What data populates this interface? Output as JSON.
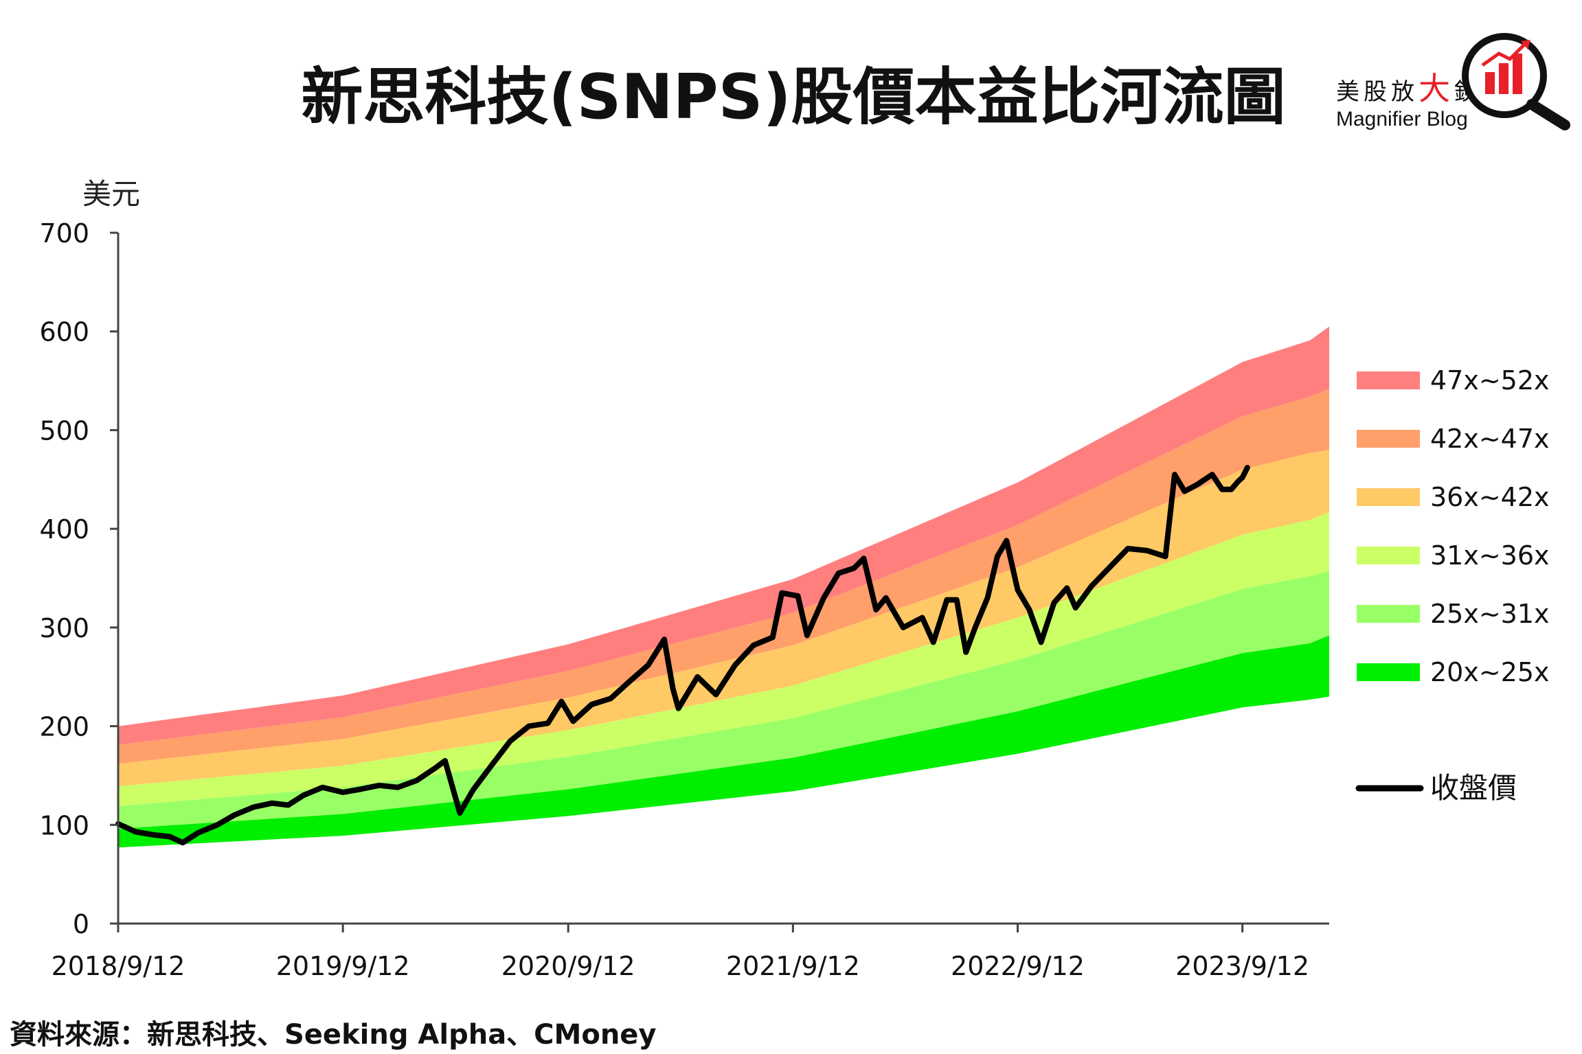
{
  "title": "新思科技(SNPS)股價本益比河流圖",
  "source": "資料來源：新思科技、Seeking Alpha、CMoney",
  "brand": {
    "cn_prefix": "美股放",
    "cn_accent": "大",
    "cn_suffix": "鏡",
    "en": "Magnifier Blog",
    "icon": "magnifier-bar-chart-icon",
    "accent_color": "#e8202a"
  },
  "chart_data": {
    "type": "area",
    "ylabel": "美元",
    "ylim": [
      0,
      700
    ],
    "yticks": [
      "0",
      "100",
      "200",
      "300",
      "400",
      "500",
      "600",
      "700"
    ],
    "xlim": [
      "2018/9/12",
      "2024/1/31"
    ],
    "xticks": [
      "2018/9/12",
      "2019/9/12",
      "2020/9/12",
      "2021/9/12",
      "2022/9/12",
      "2023/9/12"
    ],
    "legend_position": "right",
    "grid": false,
    "eps_dates": [
      "2018/9/12",
      "2019/9/12",
      "2020/9/12",
      "2021/9/12",
      "2022/9/12",
      "2023/9/12",
      "2023/12/31",
      "2024/1/31"
    ],
    "band_boundaries": [
      {
        "multiple": "20x",
        "values": [
          77,
          89,
          109,
          134,
          172,
          219,
          227,
          230
        ]
      },
      {
        "multiple": "25x",
        "values": [
          96,
          111,
          136,
          168,
          215,
          274,
          284,
          292
        ]
      },
      {
        "multiple": "31x",
        "values": [
          119,
          138,
          169,
          208,
          267,
          339,
          352,
          357
        ]
      },
      {
        "multiple": "36x",
        "values": [
          139,
          160,
          196,
          241,
          310,
          394,
          409,
          417
        ]
      },
      {
        "multiple": "42x",
        "values": [
          162,
          187,
          229,
          282,
          361,
          460,
          477,
          480
        ]
      },
      {
        "multiple": "47x",
        "values": [
          181,
          209,
          256,
          315,
          404,
          514,
          534,
          542
        ]
      },
      {
        "multiple": "52x",
        "values": [
          200,
          231,
          283,
          349,
          447,
          569,
          591,
          605
        ]
      }
    ],
    "bands": [
      {
        "name": "47x~52x",
        "color": "#ff7f7f"
      },
      {
        "name": "42x~47x",
        "color": "#ff9f6a"
      },
      {
        "name": "36x~42x",
        "color": "#ffc966"
      },
      {
        "name": "31x~36x",
        "color": "#ccff66"
      },
      {
        "name": "25x~31x",
        "color": "#99ff66"
      },
      {
        "name": "20x~25x",
        "color": "#00ee00"
      }
    ],
    "price_series": {
      "name": "收盤價",
      "color": "#000000",
      "points": [
        [
          "2018/9/12",
          101
        ],
        [
          "2018/10/10",
          93
        ],
        [
          "2018/11/7",
          90
        ],
        [
          "2018/12/5",
          88
        ],
        [
          "2018/12/26",
          82
        ],
        [
          "2019/1/20",
          92
        ],
        [
          "2019/2/20",
          100
        ],
        [
          "2019/3/20",
          110
        ],
        [
          "2019/4/20",
          118
        ],
        [
          "2019/5/20",
          122
        ],
        [
          "2019/6/15",
          120
        ],
        [
          "2019/7/10",
          130
        ],
        [
          "2019/8/10",
          138
        ],
        [
          "2019/9/12",
          133
        ],
        [
          "2019/10/10",
          136
        ],
        [
          "2019/11/10",
          140
        ],
        [
          "2019/12/10",
          138
        ],
        [
          "2020/1/10",
          145
        ],
        [
          "2020/2/10",
          158
        ],
        [
          "2020/2/25",
          165
        ],
        [
          "2020/3/20",
          112
        ],
        [
          "2020/4/10",
          135
        ],
        [
          "2020/5/10",
          160
        ],
        [
          "2020/6/10",
          185
        ],
        [
          "2020/7/10",
          200
        ],
        [
          "2020/8/10",
          203
        ],
        [
          "2020/9/1",
          225
        ],
        [
          "2020/9/20",
          205
        ],
        [
          "2020/10/20",
          222
        ],
        [
          "2020/11/20",
          228
        ],
        [
          "2020/12/20",
          245
        ],
        [
          "2021/1/20",
          262
        ],
        [
          "2021/2/15",
          288
        ],
        [
          "2021/3/1",
          238
        ],
        [
          "2021/3/10",
          218
        ],
        [
          "2021/4/10",
          250
        ],
        [
          "2021/5/10",
          232
        ],
        [
          "2021/6/10",
          262
        ],
        [
          "2021/7/10",
          282
        ],
        [
          "2021/8/10",
          290
        ],
        [
          "2021/8/25",
          335
        ],
        [
          "2021/9/20",
          332
        ],
        [
          "2021/10/5",
          292
        ],
        [
          "2021/11/1",
          330
        ],
        [
          "2021/11/25",
          355
        ],
        [
          "2021/12/20",
          360
        ],
        [
          "2022/1/5",
          370
        ],
        [
          "2022/1/25",
          318
        ],
        [
          "2022/2/10",
          330
        ],
        [
          "2022/3/10",
          300
        ],
        [
          "2022/4/10",
          310
        ],
        [
          "2022/4/28",
          285
        ],
        [
          "2022/5/20",
          328
        ],
        [
          "2022/6/5",
          328
        ],
        [
          "2022/6/20",
          275
        ],
        [
          "2022/7/5",
          300
        ],
        [
          "2022/7/25",
          330
        ],
        [
          "2022/8/10",
          372
        ],
        [
          "2022/8/25",
          388
        ],
        [
          "2022/9/12",
          338
        ],
        [
          "2022/10/1",
          318
        ],
        [
          "2022/10/20",
          285
        ],
        [
          "2022/11/10",
          325
        ],
        [
          "2022/12/1",
          340
        ],
        [
          "2022/12/15",
          320
        ],
        [
          "2023/1/10",
          342
        ],
        [
          "2023/2/10",
          362
        ],
        [
          "2023/3/10",
          380
        ],
        [
          "2023/4/10",
          378
        ],
        [
          "2023/5/10",
          372
        ],
        [
          "2023/5/25",
          455
        ],
        [
          "2023/6/10",
          438
        ],
        [
          "2023/7/1",
          445
        ],
        [
          "2023/7/25",
          455
        ],
        [
          "2023/8/10",
          440
        ],
        [
          "2023/8/25",
          440
        ],
        [
          "2023/9/5",
          448
        ],
        [
          "2023/9/12",
          452
        ],
        [
          "2023/9/20",
          462
        ]
      ]
    }
  }
}
